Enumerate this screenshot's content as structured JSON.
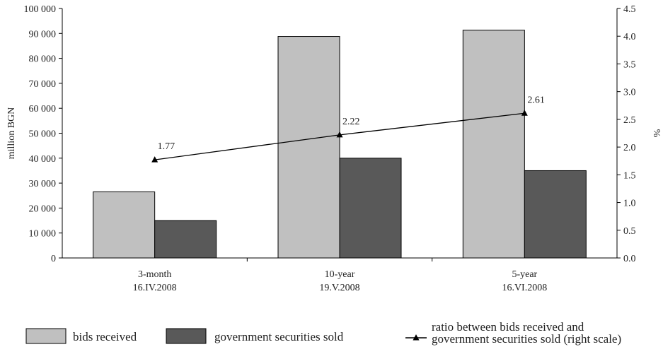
{
  "chart_data": {
    "type": "bar",
    "categories": [
      [
        "3-month",
        "16.IV.2008"
      ],
      [
        "10-year",
        "19.V.2008"
      ],
      [
        "5-year",
        "16.VI.2008"
      ]
    ],
    "series": [
      {
        "name": "bids received",
        "type": "bar",
        "axis": "left",
        "color": "#c0c0c0",
        "values": [
          26500,
          88800,
          91300
        ]
      },
      {
        "name": "government securities sold",
        "type": "bar",
        "axis": "left",
        "color": "#595959",
        "values": [
          15000,
          40000,
          35000
        ]
      },
      {
        "name": "ratio between bids received and government securities sold (right scale)",
        "type": "line",
        "axis": "right",
        "color": "#000000",
        "values": [
          1.77,
          2.22,
          2.61
        ],
        "labels": [
          "1.77",
          "2.22",
          "2.61"
        ]
      }
    ],
    "legend_lines": [
      [
        "bids received"
      ],
      [
        "government securities sold"
      ],
      [
        "ratio between bids received and",
        "government securities sold (right scale)"
      ]
    ],
    "ylabel": "million BGN",
    "y2label": "%",
    "ylim": [
      0,
      100000
    ],
    "y2lim": [
      0,
      4.5
    ],
    "yticks": [
      "0",
      "10 000",
      "20 000",
      "30 000",
      "40 000",
      "50 000",
      "60 000",
      "70 000",
      "80 000",
      "90 000",
      "100 000"
    ],
    "y2ticks": [
      "0.0",
      "0.5",
      "1.0",
      "1.5",
      "2.0",
      "2.5",
      "3.0",
      "3.5",
      "4.0",
      "4.5"
    ],
    "grid": false,
    "legend_position": "bottom"
  }
}
